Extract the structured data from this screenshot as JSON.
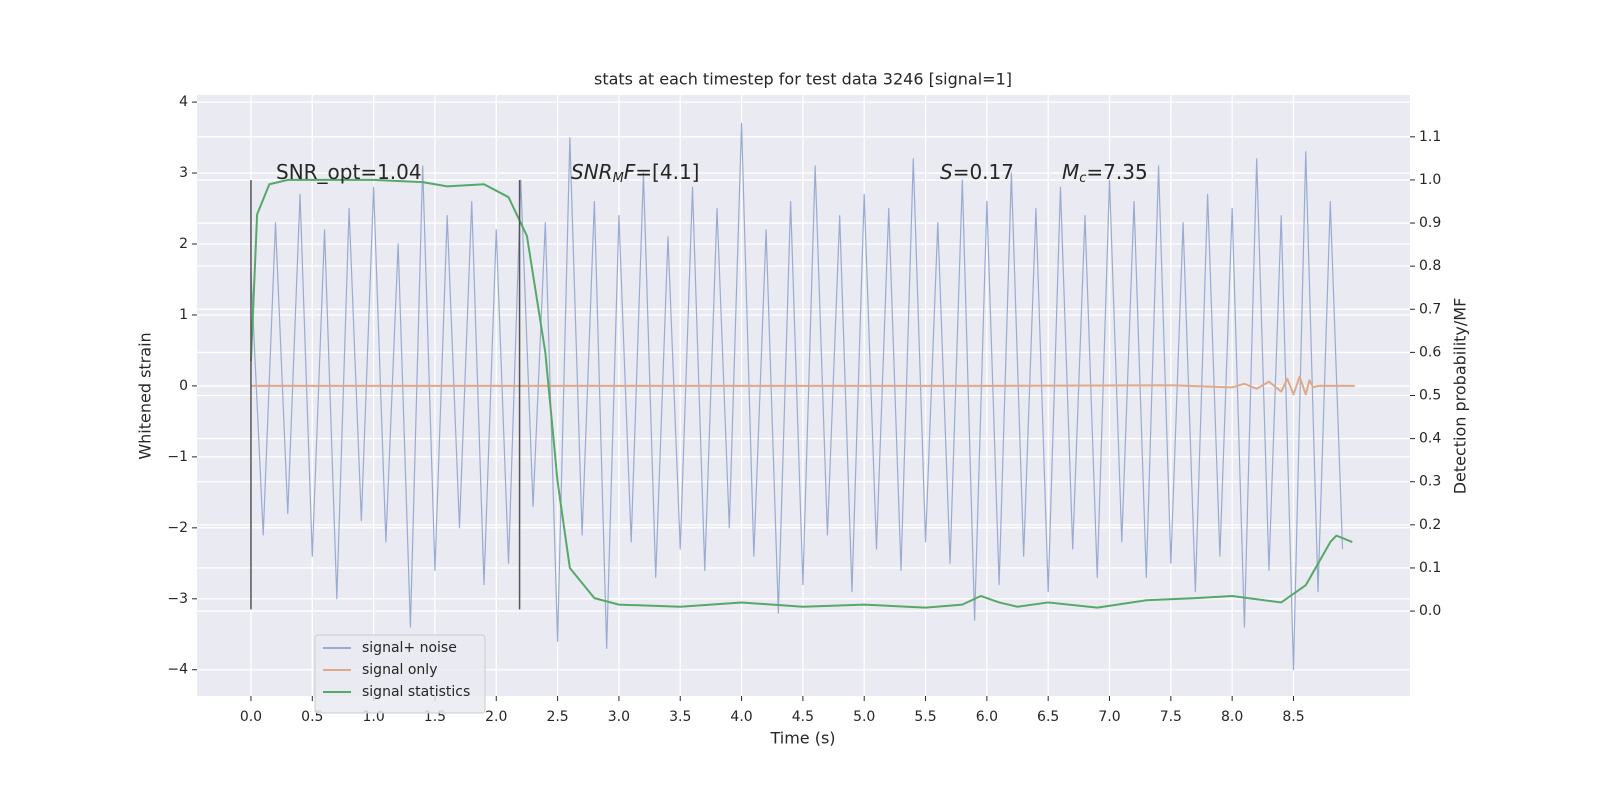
{
  "chart_data": {
    "type": "line",
    "title": "stats at each timestep for test data 3246 [signal=1]",
    "xlabel": "Time (s)",
    "ylabel": "Whitened strain",
    "y2label": "Detection probability/MF",
    "xlim": [
      -0.44,
      9.45
    ],
    "ylim": [
      -4.37,
      4.1
    ],
    "y2lim": [
      -0.197,
      1.197
    ],
    "grid": true,
    "legend": "lower left",
    "xticks": [
      {
        "value": 0,
        "label": "0.0"
      },
      {
        "value": 0.5,
        "label": "0.5"
      },
      {
        "value": 1,
        "label": "1.0"
      },
      {
        "value": 1.5,
        "label": "1.5"
      },
      {
        "value": 2,
        "label": "2.0"
      },
      {
        "value": 2.5,
        "label": "2.5"
      },
      {
        "value": 3,
        "label": "3.0"
      },
      {
        "value": 3.5,
        "label": "3.5"
      },
      {
        "value": 4,
        "label": "4.0"
      },
      {
        "value": 4.5,
        "label": "4.5"
      },
      {
        "value": 5,
        "label": "5.0"
      },
      {
        "value": 5.5,
        "label": "5.5"
      },
      {
        "value": 6,
        "label": "6.0"
      },
      {
        "value": 6.5,
        "label": "6.5"
      },
      {
        "value": 7,
        "label": "7.0"
      },
      {
        "value": 7.5,
        "label": "7.5"
      },
      {
        "value": 8,
        "label": "8.0"
      },
      {
        "value": 8.5,
        "label": "8.5"
      }
    ],
    "yticks": [
      {
        "value": -4,
        "label": "−4"
      },
      {
        "value": -3,
        "label": "−3"
      },
      {
        "value": -2,
        "label": "−2"
      },
      {
        "value": -1,
        "label": "−1"
      },
      0,
      1,
      2,
      3,
      4
    ],
    "y2ticks": [
      {
        "value": 0,
        "label": "0.0"
      },
      {
        "value": 0.1,
        "label": "0.1"
      },
      {
        "value": 0.2,
        "label": "0.2"
      },
      {
        "value": 0.3,
        "label": "0.3"
      },
      {
        "value": 0.4,
        "label": "0.4"
      },
      {
        "value": 0.5,
        "label": "0.5"
      },
      {
        "value": 0.6,
        "label": "0.6"
      },
      {
        "value": 0.7,
        "label": "0.7"
      },
      {
        "value": 0.8,
        "label": "0.8"
      },
      {
        "value": 0.9,
        "label": "0.9"
      },
      {
        "value": 1,
        "label": "1.0"
      },
      {
        "value": 1.1,
        "label": "1.1"
      }
    ],
    "series": [
      {
        "name": "signal+ noise",
        "color": "#9aabd0",
        "x": [
          0,
          0.1,
          0.2,
          0.3,
          0.4,
          0.5,
          0.6,
          0.7,
          0.8,
          0.9,
          1,
          1.1,
          1.2,
          1.3,
          1.4,
          1.5,
          1.6,
          1.7,
          1.8,
          1.9,
          2,
          2.1,
          2.2,
          2.3,
          2.4,
          2.5,
          2.6,
          2.7,
          2.8,
          2.9,
          3,
          3.1,
          3.2,
          3.3,
          3.4,
          3.5,
          3.6,
          3.7,
          3.8,
          3.9,
          4,
          4.1,
          4.2,
          4.3,
          4.4,
          4.5,
          4.6,
          4.7,
          4.8,
          4.9,
          5,
          5.1,
          5.2,
          5.3,
          5.4,
          5.5,
          5.6,
          5.7,
          5.8,
          5.9,
          6,
          6.1,
          6.2,
          6.3,
          6.4,
          6.5,
          6.6,
          6.7,
          6.8,
          6.9,
          7,
          7.1,
          7.2,
          7.3,
          7.4,
          7.5,
          7.6,
          7.7,
          7.8,
          7.9,
          8,
          8.1,
          8.2,
          8.3,
          8.4,
          8.5,
          8.6,
          8.7,
          8.8,
          8.9
        ],
        "values": [
          1.6,
          -2.1,
          2.3,
          -1.8,
          2.7,
          -2.4,
          2.2,
          -3.0,
          2.5,
          -1.9,
          2.8,
          -2.2,
          2.0,
          -3.4,
          3.1,
          -2.6,
          2.4,
          -2.0,
          2.6,
          -2.8,
          2.2,
          -2.5,
          2.9,
          -1.7,
          2.3,
          -3.6,
          3.5,
          -2.1,
          2.6,
          -3.7,
          2.4,
          -2.2,
          3.0,
          -2.7,
          2.1,
          -2.3,
          2.8,
          -2.6,
          2.5,
          -2.0,
          3.7,
          -2.4,
          2.2,
          -3.2,
          2.6,
          -2.8,
          3.1,
          -2.1,
          2.4,
          -2.9,
          2.7,
          -2.3,
          2.5,
          -2.6,
          3.2,
          -2.2,
          2.3,
          -2.5,
          2.9,
          -3.3,
          2.6,
          -2.8,
          3.0,
          -2.4,
          2.5,
          -2.9,
          2.8,
          -2.3,
          2.4,
          -2.7,
          2.9,
          -2.2,
          2.6,
          -2.7,
          3.1,
          -2.5,
          2.3,
          -2.9,
          2.7,
          -2.4,
          2.5,
          -3.4,
          3.2,
          -2.6,
          2.4,
          -4.0,
          3.3,
          -2.9,
          2.6,
          -2.3
        ]
      },
      {
        "name": "signal only",
        "color": "#e0a98a",
        "x": [
          0,
          2,
          4,
          6,
          7.5,
          8.0,
          8.1,
          8.2,
          8.3,
          8.4,
          8.45,
          8.5,
          8.55,
          8.6,
          8.63,
          8.66,
          8.7,
          9.0
        ],
        "values": [
          0,
          0,
          0,
          0,
          0.01,
          -0.02,
          0.03,
          -0.04,
          0.06,
          -0.08,
          0.1,
          -0.12,
          0.13,
          -0.12,
          0.08,
          -0.02,
          0,
          0
        ]
      },
      {
        "name": "signal statistics",
        "color": "#55a868",
        "axis": "y2",
        "x": [
          0,
          0.05,
          0.15,
          0.3,
          1.0,
          1.4,
          1.6,
          1.9,
          2.1,
          2.25,
          2.4,
          2.5,
          2.6,
          2.8,
          3.0,
          3.5,
          4.0,
          4.5,
          5.0,
          5.5,
          5.8,
          5.95,
          6.1,
          6.25,
          6.5,
          6.9,
          7.3,
          7.7,
          8.0,
          8.4,
          8.6,
          8.8,
          8.85,
          8.98
        ],
        "values": [
          0.58,
          0.92,
          0.99,
          1.0,
          1.0,
          0.995,
          0.985,
          0.99,
          0.96,
          0.87,
          0.6,
          0.3,
          0.1,
          0.03,
          0.015,
          0.01,
          0.02,
          0.01,
          0.015,
          0.008,
          0.015,
          0.035,
          0.02,
          0.01,
          0.02,
          0.008,
          0.025,
          0.03,
          0.035,
          0.02,
          0.06,
          0.16,
          0.175,
          0.16
        ]
      }
    ],
    "vlines": {
      "x": [
        0,
        2.19
      ],
      "ymin": -3.15,
      "ymax": 2.9,
      "color": "#555555"
    },
    "annotations": [
      {
        "parts": [
          {
            "text": "SNR_opt=1.04",
            "style": "plain"
          }
        ]
      },
      {
        "parts": [
          {
            "text": "SNR",
            "style": "italic"
          },
          {
            "text": "M",
            "style": "sub"
          },
          {
            "text": "F",
            "style": "italic"
          },
          {
            "text": "=[4.1]",
            "style": "plain"
          }
        ]
      },
      {
        "parts": [
          {
            "text": "S",
            "style": "italic"
          },
          {
            "text": "=0.17",
            "style": "plain"
          }
        ]
      },
      {
        "parts": [
          {
            "text": "M",
            "style": "italic"
          },
          {
            "text": "c",
            "style": "sub"
          },
          {
            "text": "=7.35",
            "style": "plain"
          }
        ]
      }
    ]
  }
}
